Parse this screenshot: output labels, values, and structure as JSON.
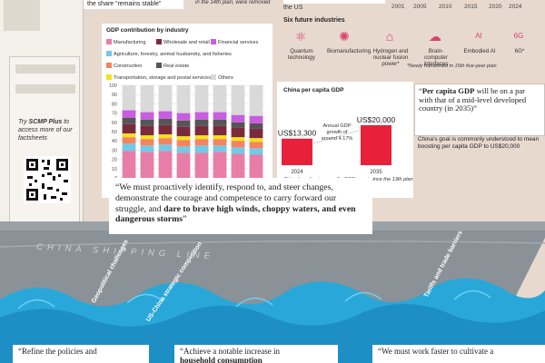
{
  "top": {
    "note": "the share “remains stable”",
    "note2": "in the 14th plan, were removed",
    "us_text": "the US",
    "years": [
      "2001",
      "2005",
      "2010",
      "2015",
      "2020",
      "2024"
    ]
  },
  "promo": {
    "line1": "Try ",
    "brand": "SCMP Plus",
    "line2": " to access more of our factsheets"
  },
  "chart_data": {
    "type": "bar",
    "stacked": true,
    "title": "GDP contribution by industry",
    "categories": [
      "2016",
      "2017",
      "2018",
      "2019",
      "2020",
      "2022",
      "2023",
      "2024"
    ],
    "ylim": [
      0,
      100
    ],
    "yticks": [
      0,
      10,
      20,
      30,
      40,
      50,
      60,
      70,
      80,
      90,
      100
    ],
    "series": [
      {
        "name": "Manufacturing",
        "color": "#e87ea8",
        "values": [
          29,
          28,
          29,
          27,
          27,
          28,
          26,
          25
        ]
      },
      {
        "name": "Agriculture, forestry, animal husbandry, and fisheries",
        "color": "#73c9e6",
        "values": [
          8,
          7,
          7,
          7,
          8,
          7,
          7,
          7
        ]
      },
      {
        "name": "Construction",
        "color": "#f4845f",
        "values": [
          7,
          7,
          7,
          7,
          7,
          7,
          7,
          7
        ]
      },
      {
        "name": "Transportation, storage and postal services",
        "color": "#f3e21a",
        "values": [
          4,
          4,
          4,
          4,
          4,
          4,
          4,
          4
        ]
      },
      {
        "name": "Wholesale and retail",
        "color": "#7b2a3e",
        "values": [
          10,
          10,
          10,
          10,
          10,
          10,
          10,
          10
        ]
      },
      {
        "name": "Real estate",
        "color": "#555555",
        "values": [
          7,
          7,
          7,
          7,
          7,
          7,
          6,
          6
        ]
      },
      {
        "name": "Financial services",
        "color": "#c85de0",
        "values": [
          8,
          8,
          8,
          8,
          8,
          8,
          8,
          8
        ]
      },
      {
        "name": "Others",
        "color": "#d9d9d9",
        "values": [
          27,
          29,
          28,
          30,
          29,
          29,
          32,
          33
        ]
      }
    ]
  },
  "industries": {
    "title": "Six future industries",
    "items": [
      {
        "label": "Quantum technology",
        "icon": "atom-icon",
        "glyph": "⚛"
      },
      {
        "label": "Biomanufacturing",
        "icon": "virus-icon",
        "glyph": "✺"
      },
      {
        "label": "Hydrogen and nuclear fusion power*",
        "icon": "plant-icon",
        "glyph": "⌂"
      },
      {
        "label": "Brain-computer interfaces",
        "icon": "brain-icon",
        "glyph": "☁"
      },
      {
        "label": "Embodied AI",
        "icon": "ai-icon",
        "glyph": "AI"
      },
      {
        "label": "6G*",
        "icon": "signal-icon",
        "glyph": "6G"
      }
    ],
    "note": "*Newly mentioned in 15th five-year plan"
  },
  "per_capita": {
    "title": "China per capita GDP",
    "bars": [
      {
        "year": "2024",
        "value": 13300,
        "label": "US$13,300"
      },
      {
        "year": "2035",
        "value": 20000,
        "label": "US$20,000"
      }
    ],
    "growth": "Annual GDP growth of around 4.17%",
    "note": "China hasn't set a specific GDP target since the 13th plan",
    "bar_color": "#e8203a",
    "quote": "Per capita GDP will be on a par with that of a mid-level developed country (in 2035)",
    "quote_bold": "Per capita GDP",
    "note2": "China's goal is commonly understood to mean boosting per capita GDP to US$20,000"
  },
  "quote": {
    "plain": "“We must proactively identify, respond to, and steer changes, demonstrate the courage and competence to carry forward our struggle, and ",
    "bold": "dare to brave high winds, choppy waters, and even dangerous storms",
    "end": "”"
  },
  "hull": {
    "text": "CHINA SHIPPING LINE"
  },
  "waves": [
    {
      "label": "Geopolitical challenges"
    },
    {
      "label": "US-China strategic competition"
    },
    {
      "label": "Tariffs and trade barriers"
    }
  ],
  "bottom": [
    {
      "text": "“Refine the policies and"
    },
    {
      "text": "“Achieve a notable increase in",
      "bold": "household consumption"
    },
    {
      "text": "“We must work faster to cultivate a"
    }
  ]
}
